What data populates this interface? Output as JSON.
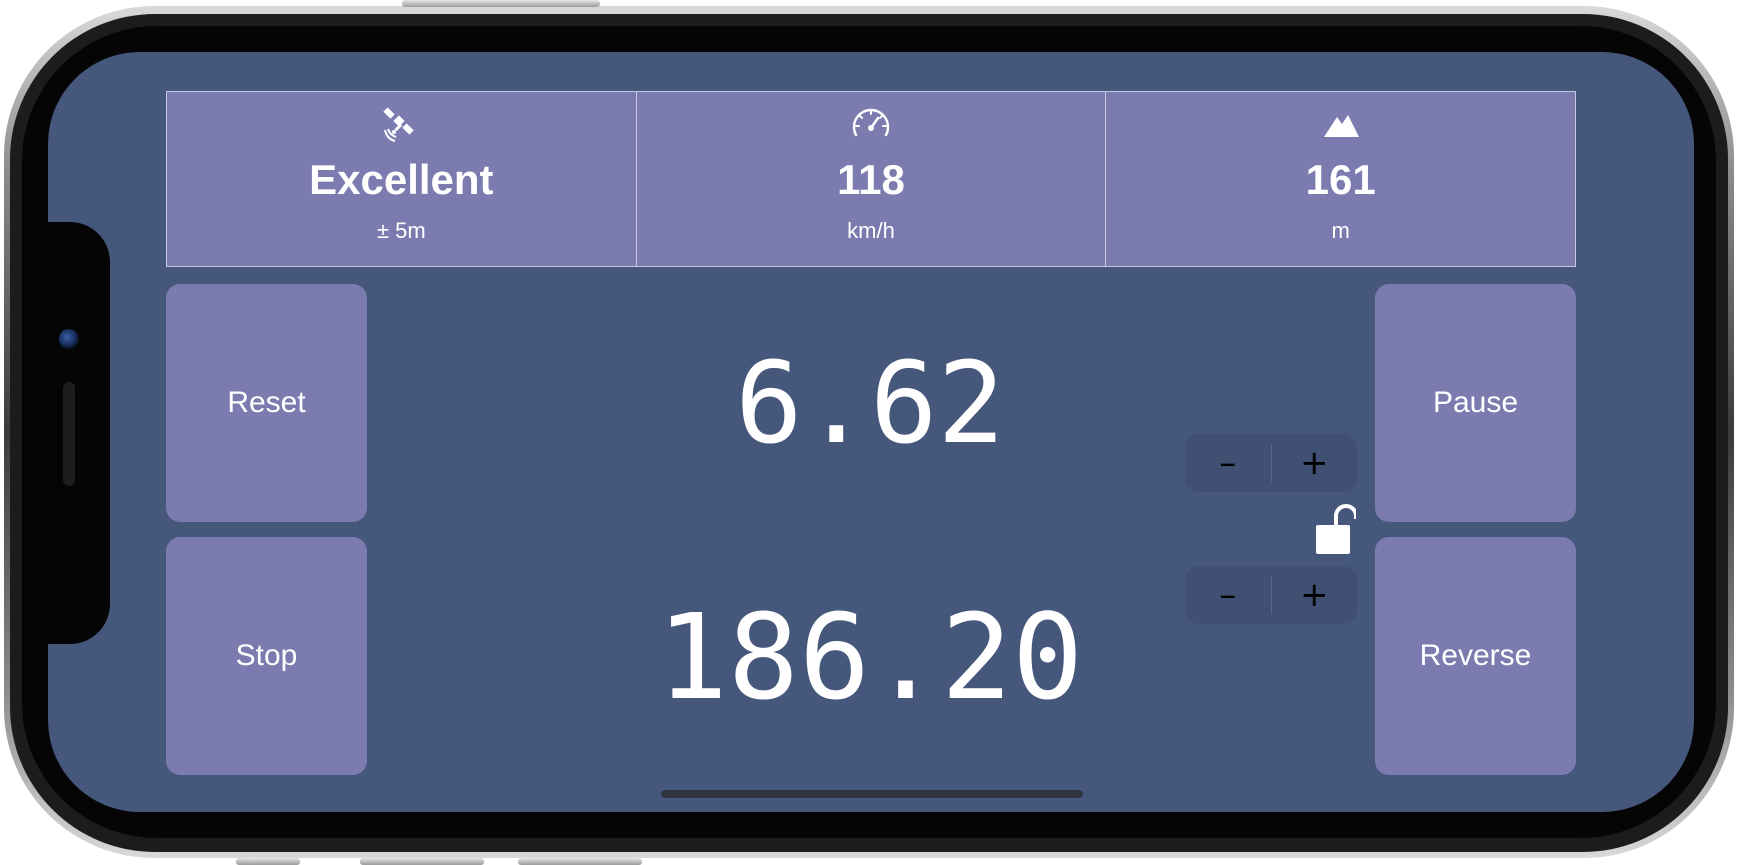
{
  "stats": {
    "gps": {
      "icon": "satellite-icon",
      "value": "Excellent",
      "unit": "± 5m"
    },
    "speed": {
      "icon": "speedometer-icon",
      "value": "118",
      "unit": "km/h"
    },
    "altitude": {
      "icon": "mountain-icon",
      "value": "161",
      "unit": "m"
    }
  },
  "buttons": {
    "reset": "Reset",
    "stop": "Stop",
    "pause": "Pause",
    "reverse": "Reverse"
  },
  "readouts": {
    "partial": "6.62",
    "total": "186.20"
  },
  "steppers": {
    "minus_label": "–",
    "plus_label": "+"
  },
  "lock": {
    "icon": "unlocked-padlock-icon"
  },
  "colors": {
    "screen_background": "#45577b",
    "tile": "#7c7bb0",
    "stepper_background": "#3f5072",
    "text": "#ffffff"
  }
}
